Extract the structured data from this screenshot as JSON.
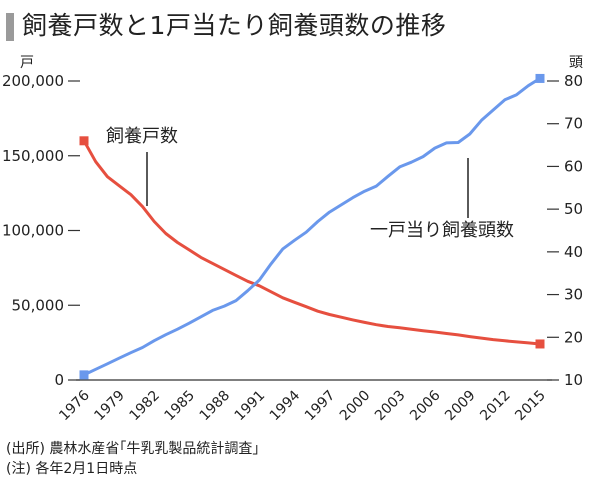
{
  "title": "飼養戸数と1戸当たり飼養頭数の推移",
  "colors": {
    "farms": "#e64f3f",
    "cows": "#6a98ec",
    "title_bar": "#9a9a9a",
    "axis": "#333333"
  },
  "chart_data": {
    "type": "line",
    "title": "飼養戸数と1戸当たり飼養頭数の推移",
    "x": [
      1976,
      1977,
      1978,
      1979,
      1980,
      1981,
      1982,
      1983,
      1984,
      1985,
      1986,
      1987,
      1988,
      1989,
      1990,
      1991,
      1992,
      1993,
      1994,
      1995,
      1996,
      1997,
      1998,
      1999,
      2000,
      2001,
      2002,
      2003,
      2004,
      2005,
      2006,
      2007,
      2008,
      2009,
      2010,
      2011,
      2012,
      2013,
      2014,
      2015
    ],
    "xticks": [
      "1976",
      "1979",
      "1982",
      "1985",
      "1988",
      "1991",
      "1994",
      "1997",
      "2000",
      "2003",
      "2006",
      "2009",
      "2012",
      "2015"
    ],
    "y_left": {
      "unit": "戸",
      "min": 0,
      "max": 200000,
      "ticks": [
        "0",
        "50,000",
        "100,000",
        "150,000",
        "200,000"
      ]
    },
    "y_right": {
      "unit": "頭",
      "min": 10,
      "max": 80,
      "ticks": [
        "10",
        "20",
        "30",
        "40",
        "50",
        "60",
        "70",
        "80"
      ]
    },
    "series": [
      {
        "name": "飼養戸数",
        "axis": "left",
        "color": "#e64f3f",
        "values": [
          160000,
          146000,
          136000,
          130000,
          124000,
          116000,
          106000,
          98000,
          92000,
          87000,
          82000,
          78000,
          74000,
          70000,
          66000,
          63000,
          59000,
          55000,
          52000,
          49000,
          46000,
          43800,
          42000,
          40200,
          38500,
          37000,
          35800,
          34900,
          34000,
          33000,
          32100,
          31100,
          30200,
          29000,
          28000,
          27000,
          26200,
          25500,
          24800,
          24100
        ]
      },
      {
        "name": "一戸当り飼養頭数",
        "axis": "right",
        "color": "#6a98ec",
        "values": [
          11.2,
          12.5,
          13.8,
          15.1,
          16.4,
          17.6,
          19.2,
          20.6,
          21.9,
          23.3,
          24.8,
          26.3,
          27.3,
          28.6,
          30.9,
          33.4,
          37.2,
          40.7,
          42.7,
          44.6,
          47.1,
          49.3,
          51.0,
          52.7,
          54.2,
          55.4,
          57.7,
          59.9,
          61.0,
          62.3,
          64.3,
          65.5,
          65.6,
          67.6,
          70.8,
          73.2,
          75.6,
          76.8,
          78.9,
          80.6
        ]
      }
    ]
  },
  "footnotes": {
    "source": "(出所) 農林水産省｢牛乳乳製品統計調査｣",
    "note": "(注) 各年2月1日時点"
  }
}
